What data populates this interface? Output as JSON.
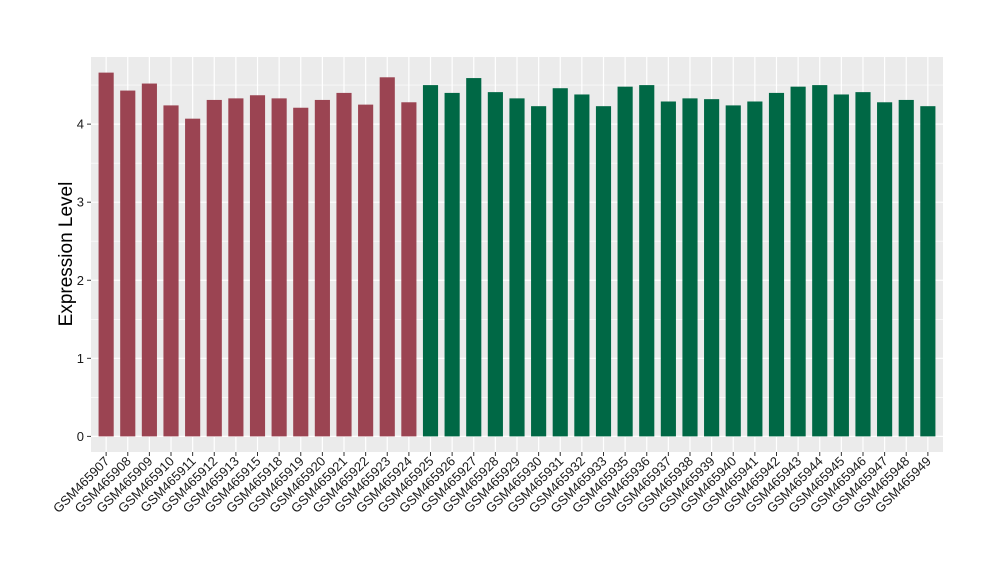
{
  "chart_data": {
    "type": "bar",
    "title": "",
    "xlabel": "",
    "ylabel": "Expression Level",
    "ylim": [
      -0.2,
      4.86
    ],
    "yticks": [
      0,
      1,
      2,
      3,
      4
    ],
    "grid": true,
    "legend": "none",
    "categories": [
      "GSM465907",
      "GSM465908",
      "GSM465909",
      "GSM465910",
      "GSM465911",
      "GSM465912",
      "GSM465913",
      "GSM465915",
      "GSM465918",
      "GSM465919",
      "GSM465920",
      "GSM465921",
      "GSM465922",
      "GSM465923",
      "GSM465924",
      "GSM465925",
      "GSM465926",
      "GSM465927",
      "GSM465928",
      "GSM465929",
      "GSM465930",
      "GSM465931",
      "GSM465932",
      "GSM465933",
      "GSM465935",
      "GSM465936",
      "GSM465937",
      "GSM465938",
      "GSM465939",
      "GSM465940",
      "GSM465941",
      "GSM465942",
      "GSM465943",
      "GSM465944",
      "GSM465945",
      "GSM465946",
      "GSM465947",
      "GSM465948",
      "GSM465949"
    ],
    "values": [
      4.66,
      4.43,
      4.52,
      4.24,
      4.07,
      4.31,
      4.33,
      4.37,
      4.33,
      4.21,
      4.31,
      4.4,
      4.25,
      4.6,
      4.28,
      4.5,
      4.4,
      4.59,
      4.41,
      4.33,
      4.23,
      4.46,
      4.38,
      4.23,
      4.48,
      4.5,
      4.29,
      4.33,
      4.32,
      4.24,
      4.29,
      4.4,
      4.48,
      4.5,
      4.38,
      4.41,
      4.28,
      4.31,
      4.23
    ],
    "groups": [
      0,
      0,
      0,
      0,
      0,
      0,
      0,
      0,
      0,
      0,
      0,
      0,
      0,
      0,
      0,
      1,
      1,
      1,
      1,
      1,
      1,
      1,
      1,
      1,
      1,
      1,
      1,
      1,
      1,
      1,
      1,
      1,
      1,
      1,
      1,
      1,
      1,
      1,
      1
    ],
    "colors": {
      "group_0": "#9b4452",
      "group_1": "#006845",
      "panel_background": "#ebebeb",
      "grid": "#ffffff"
    }
  }
}
